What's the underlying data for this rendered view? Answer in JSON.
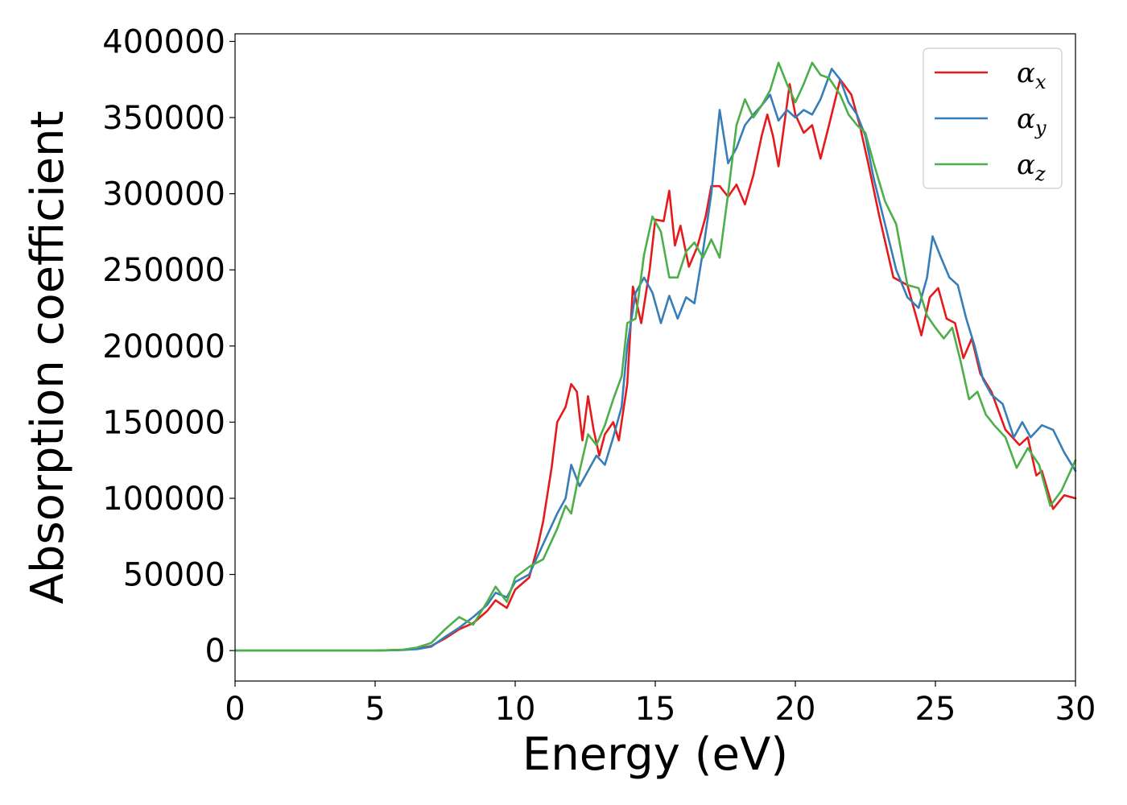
{
  "chart_data": {
    "type": "line",
    "xlabel": "Energy (eV)",
    "ylabel": "Absorption coefficient",
    "xlim": [
      0,
      30
    ],
    "ylim": [
      -20000,
      405000
    ],
    "xticks": [
      0,
      5,
      10,
      15,
      20,
      25,
      30
    ],
    "yticks": [
      0,
      50000,
      100000,
      150000,
      200000,
      250000,
      300000,
      350000,
      400000
    ],
    "grid": false,
    "legend_position": "top-right",
    "series": [
      {
        "name": "α_x",
        "label_main": "α",
        "label_sub": "x",
        "color": "#e41a1c",
        "points": [
          [
            0,
            0
          ],
          [
            5,
            0
          ],
          [
            6,
            500
          ],
          [
            6.5,
            1200
          ],
          [
            7,
            3000
          ],
          [
            7.5,
            8000
          ],
          [
            8,
            14000
          ],
          [
            8.5,
            18000
          ],
          [
            9,
            26000
          ],
          [
            9.3,
            33000
          ],
          [
            9.7,
            28000
          ],
          [
            10,
            40000
          ],
          [
            10.5,
            48000
          ],
          [
            10.8,
            68000
          ],
          [
            11,
            85000
          ],
          [
            11.3,
            120000
          ],
          [
            11.5,
            150000
          ],
          [
            11.8,
            160000
          ],
          [
            12,
            175000
          ],
          [
            12.2,
            170000
          ],
          [
            12.4,
            138000
          ],
          [
            12.6,
            167000
          ],
          [
            12.8,
            145000
          ],
          [
            13,
            128000
          ],
          [
            13.2,
            142000
          ],
          [
            13.5,
            150000
          ],
          [
            13.7,
            138000
          ],
          [
            14,
            175000
          ],
          [
            14.2,
            239000
          ],
          [
            14.5,
            215000
          ],
          [
            14.8,
            250000
          ],
          [
            15,
            283000
          ],
          [
            15.3,
            282000
          ],
          [
            15.5,
            302000
          ],
          [
            15.7,
            266000
          ],
          [
            15.9,
            279000
          ],
          [
            16.2,
            252000
          ],
          [
            16.5,
            265000
          ],
          [
            16.8,
            285000
          ],
          [
            17,
            305000
          ],
          [
            17.3,
            305000
          ],
          [
            17.6,
            298000
          ],
          [
            17.9,
            306000
          ],
          [
            18.2,
            293000
          ],
          [
            18.5,
            312000
          ],
          [
            18.8,
            338000
          ],
          [
            19,
            352000
          ],
          [
            19.2,
            338000
          ],
          [
            19.4,
            318000
          ],
          [
            19.6,
            345000
          ],
          [
            19.8,
            372000
          ],
          [
            20,
            352000
          ],
          [
            20.3,
            340000
          ],
          [
            20.6,
            345000
          ],
          [
            20.9,
            323000
          ],
          [
            21.2,
            345000
          ],
          [
            21.6,
            375000
          ],
          [
            22,
            365000
          ],
          [
            22.3,
            345000
          ],
          [
            22.6,
            320000
          ],
          [
            23,
            285000
          ],
          [
            23.5,
            245000
          ],
          [
            24,
            240000
          ],
          [
            24.5,
            207000
          ],
          [
            24.8,
            232000
          ],
          [
            25.1,
            238000
          ],
          [
            25.4,
            218000
          ],
          [
            25.7,
            215000
          ],
          [
            26,
            192000
          ],
          [
            26.3,
            205000
          ],
          [
            26.6,
            182000
          ],
          [
            27,
            170000
          ],
          [
            27.5,
            145000
          ],
          [
            28,
            135000
          ],
          [
            28.3,
            140000
          ],
          [
            28.6,
            115000
          ],
          [
            28.8,
            118000
          ],
          [
            29.2,
            93000
          ],
          [
            29.6,
            102000
          ],
          [
            30,
            100000
          ]
        ]
      },
      {
        "name": "α_y",
        "label_main": "α",
        "label_sub": "y",
        "color": "#377eb8",
        "points": [
          [
            0,
            0
          ],
          [
            5,
            0
          ],
          [
            6,
            400
          ],
          [
            6.5,
            1000
          ],
          [
            7,
            2500
          ],
          [
            7.5,
            9000
          ],
          [
            8,
            15000
          ],
          [
            8.5,
            22000
          ],
          [
            9,
            30000
          ],
          [
            9.3,
            38000
          ],
          [
            9.7,
            35000
          ],
          [
            10,
            45000
          ],
          [
            10.5,
            50000
          ],
          [
            11,
            70000
          ],
          [
            11.5,
            90000
          ],
          [
            11.8,
            100000
          ],
          [
            12,
            122000
          ],
          [
            12.3,
            108000
          ],
          [
            12.6,
            118000
          ],
          [
            12.9,
            128000
          ],
          [
            13.2,
            122000
          ],
          [
            13.5,
            140000
          ],
          [
            13.8,
            160000
          ],
          [
            14,
            200000
          ],
          [
            14.3,
            235000
          ],
          [
            14.6,
            245000
          ],
          [
            14.9,
            235000
          ],
          [
            15.2,
            215000
          ],
          [
            15.5,
            233000
          ],
          [
            15.8,
            218000
          ],
          [
            16.1,
            232000
          ],
          [
            16.4,
            228000
          ],
          [
            16.7,
            262000
          ],
          [
            17,
            300000
          ],
          [
            17.3,
            355000
          ],
          [
            17.6,
            320000
          ],
          [
            17.9,
            330000
          ],
          [
            18.2,
            345000
          ],
          [
            18.5,
            352000
          ],
          [
            18.8,
            358000
          ],
          [
            19.1,
            365000
          ],
          [
            19.4,
            348000
          ],
          [
            19.7,
            355000
          ],
          [
            20,
            350000
          ],
          [
            20.3,
            355000
          ],
          [
            20.6,
            352000
          ],
          [
            20.9,
            362000
          ],
          [
            21.3,
            382000
          ],
          [
            21.6,
            375000
          ],
          [
            21.9,
            360000
          ],
          [
            22.2,
            352000
          ],
          [
            22.5,
            338000
          ],
          [
            22.8,
            310000
          ],
          [
            23.2,
            280000
          ],
          [
            23.6,
            250000
          ],
          [
            24,
            232000
          ],
          [
            24.4,
            225000
          ],
          [
            24.7,
            245000
          ],
          [
            24.9,
            272000
          ],
          [
            25.2,
            258000
          ],
          [
            25.5,
            245000
          ],
          [
            25.8,
            240000
          ],
          [
            26.1,
            218000
          ],
          [
            26.4,
            200000
          ],
          [
            26.7,
            178000
          ],
          [
            27,
            168000
          ],
          [
            27.4,
            162000
          ],
          [
            27.8,
            140000
          ],
          [
            28.1,
            150000
          ],
          [
            28.4,
            140000
          ],
          [
            28.8,
            148000
          ],
          [
            29.2,
            145000
          ],
          [
            29.6,
            130000
          ],
          [
            30,
            118000
          ]
        ]
      },
      {
        "name": "α_z",
        "label_main": "α",
        "label_sub": "z",
        "color": "#4daf4a",
        "points": [
          [
            0,
            0
          ],
          [
            5,
            0
          ],
          [
            6,
            600
          ],
          [
            6.5,
            2000
          ],
          [
            7,
            5000
          ],
          [
            7.5,
            14000
          ],
          [
            8,
            22000
          ],
          [
            8.5,
            17000
          ],
          [
            9,
            32000
          ],
          [
            9.3,
            42000
          ],
          [
            9.7,
            32000
          ],
          [
            10,
            48000
          ],
          [
            10.5,
            55000
          ],
          [
            11,
            60000
          ],
          [
            11.5,
            80000
          ],
          [
            11.8,
            95000
          ],
          [
            12,
            90000
          ],
          [
            12.3,
            118000
          ],
          [
            12.6,
            142000
          ],
          [
            12.9,
            135000
          ],
          [
            13.2,
            148000
          ],
          [
            13.5,
            165000
          ],
          [
            13.8,
            180000
          ],
          [
            14,
            215000
          ],
          [
            14.3,
            218000
          ],
          [
            14.6,
            260000
          ],
          [
            14.9,
            285000
          ],
          [
            15.2,
            275000
          ],
          [
            15.5,
            245000
          ],
          [
            15.8,
            245000
          ],
          [
            16.1,
            262000
          ],
          [
            16.4,
            268000
          ],
          [
            16.7,
            258000
          ],
          [
            17,
            270000
          ],
          [
            17.3,
            258000
          ],
          [
            17.6,
            300000
          ],
          [
            17.9,
            345000
          ],
          [
            18.2,
            362000
          ],
          [
            18.5,
            350000
          ],
          [
            18.8,
            358000
          ],
          [
            19.1,
            368000
          ],
          [
            19.4,
            386000
          ],
          [
            19.7,
            372000
          ],
          [
            20,
            360000
          ],
          [
            20.3,
            372000
          ],
          [
            20.6,
            386000
          ],
          [
            20.9,
            378000
          ],
          [
            21.2,
            376000
          ],
          [
            21.6,
            365000
          ],
          [
            21.9,
            352000
          ],
          [
            22.2,
            345000
          ],
          [
            22.5,
            340000
          ],
          [
            22.8,
            320000
          ],
          [
            23.2,
            295000
          ],
          [
            23.6,
            280000
          ],
          [
            24,
            240000
          ],
          [
            24.4,
            238000
          ],
          [
            24.7,
            220000
          ],
          [
            25,
            212000
          ],
          [
            25.3,
            205000
          ],
          [
            25.6,
            212000
          ],
          [
            25.9,
            190000
          ],
          [
            26.2,
            165000
          ],
          [
            26.5,
            170000
          ],
          [
            26.8,
            155000
          ],
          [
            27.1,
            148000
          ],
          [
            27.5,
            140000
          ],
          [
            27.9,
            120000
          ],
          [
            28.3,
            133000
          ],
          [
            28.7,
            122000
          ],
          [
            29.1,
            95000
          ],
          [
            29.5,
            105000
          ],
          [
            30,
            125000
          ]
        ]
      }
    ]
  }
}
